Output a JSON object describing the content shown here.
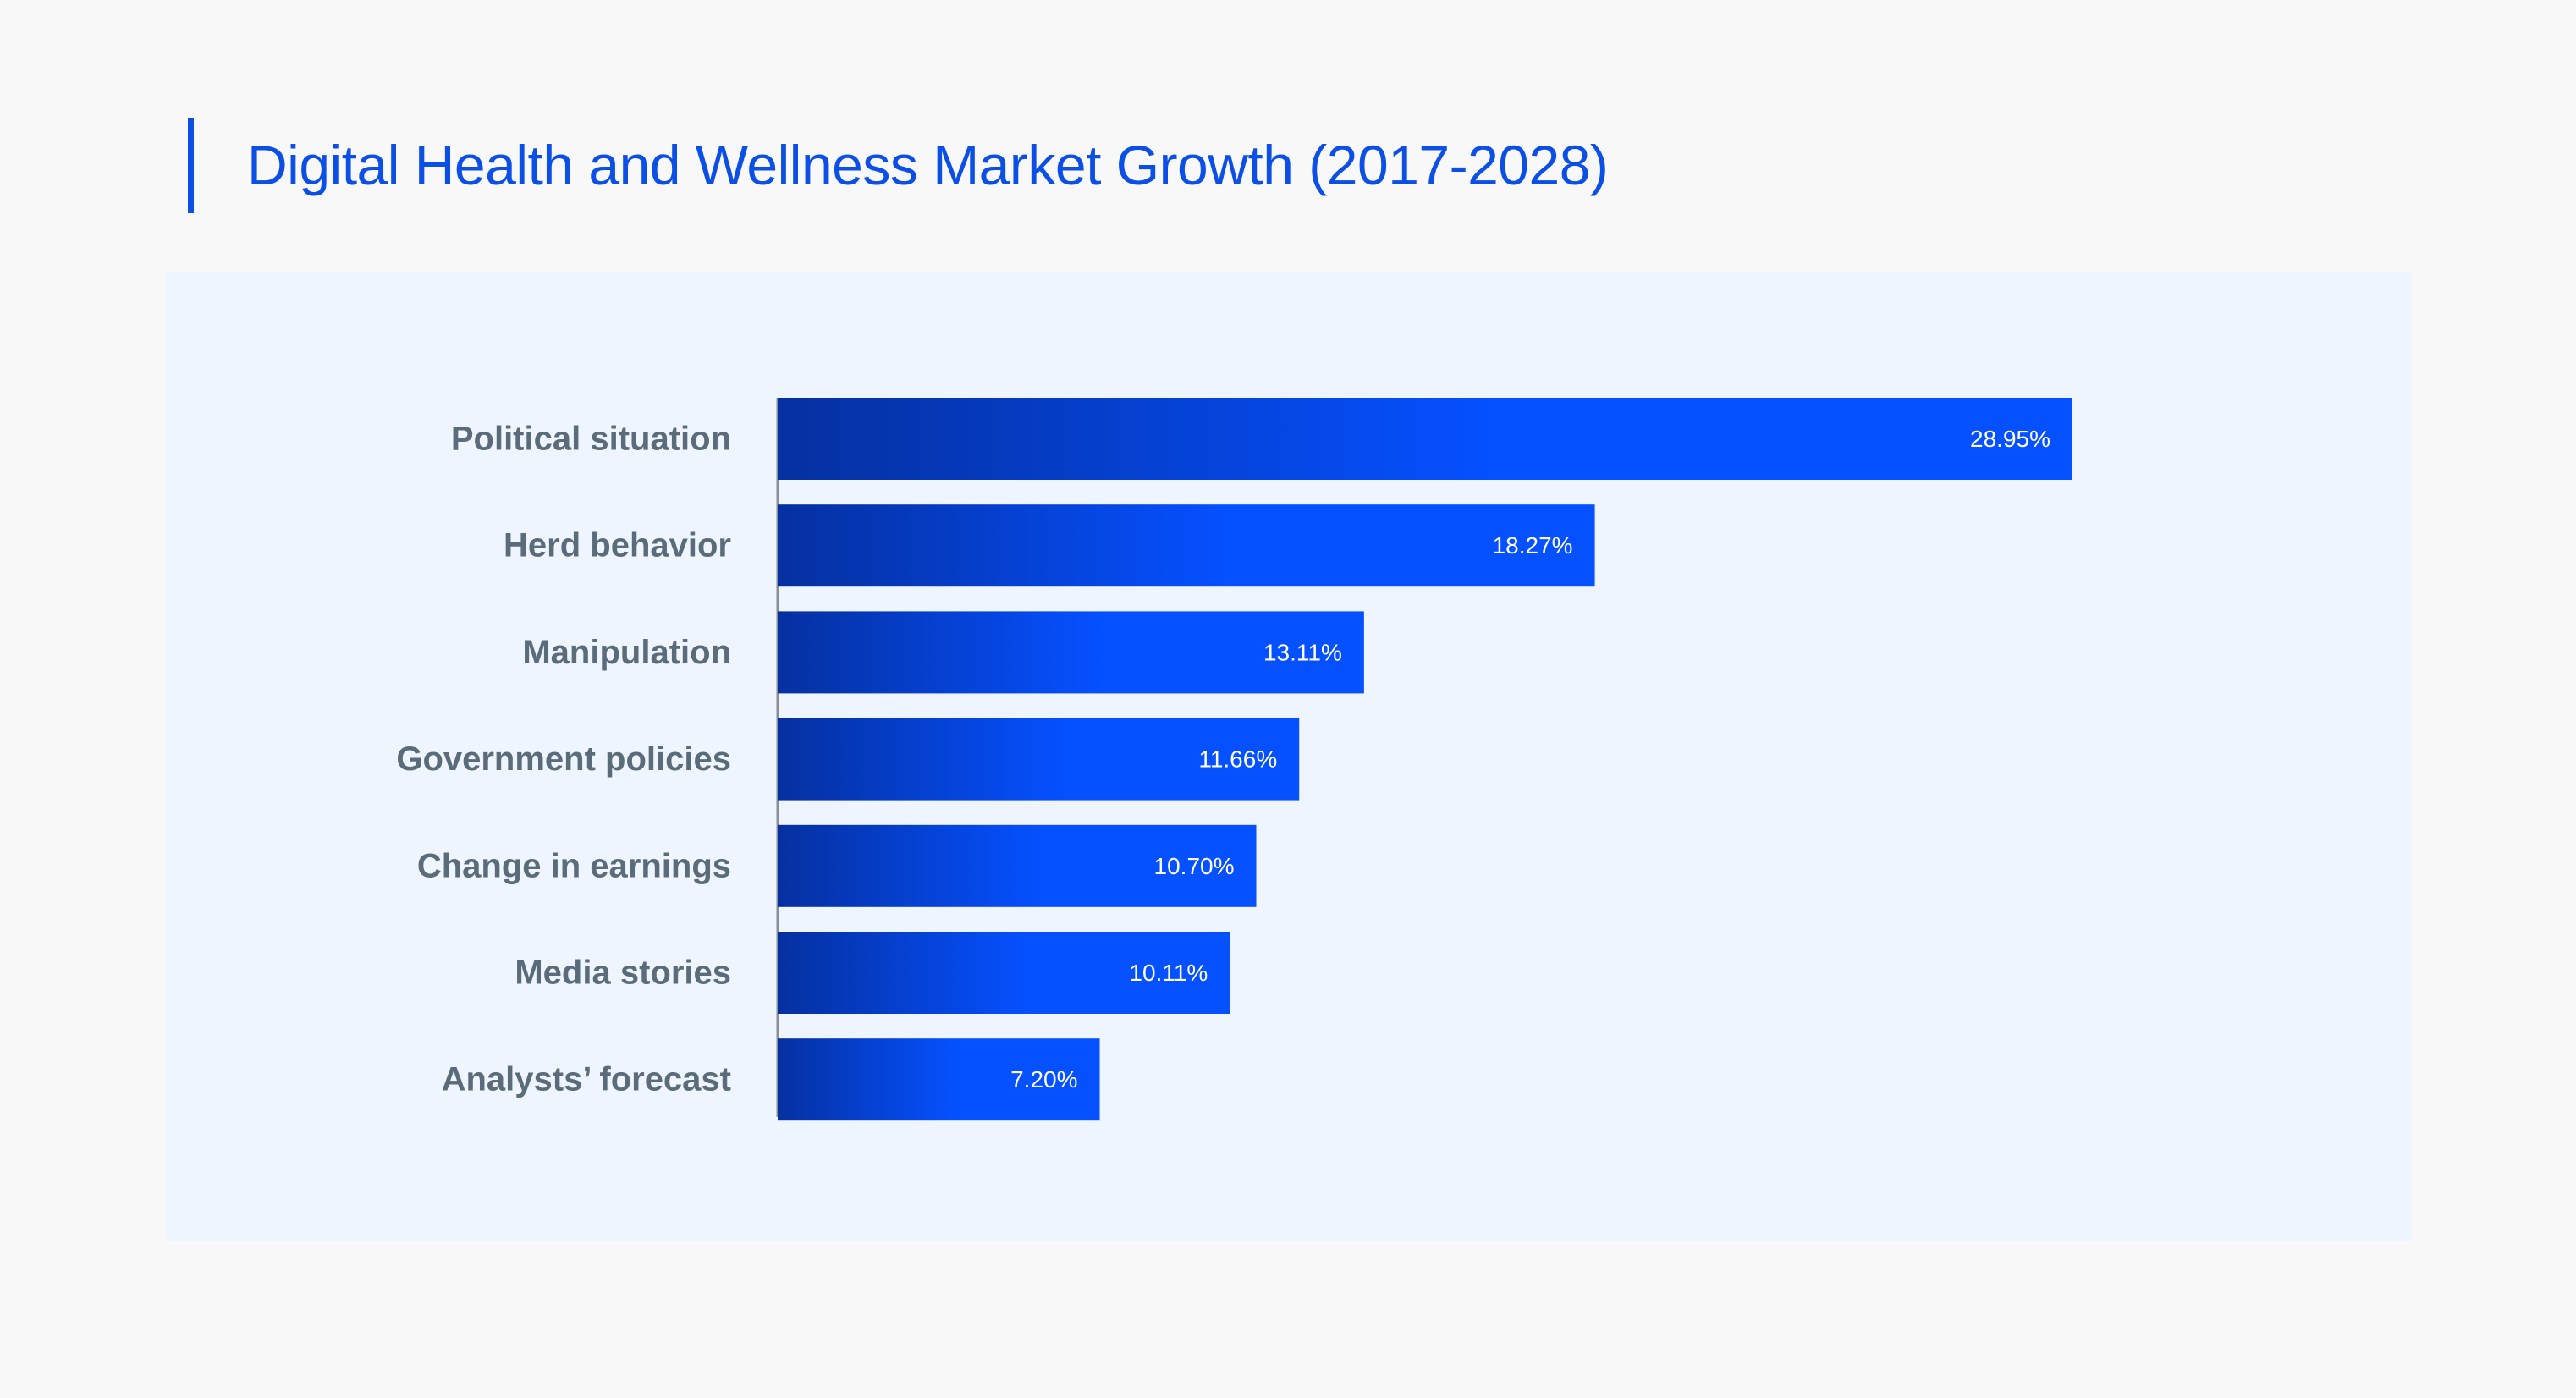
{
  "title": "Digital Health and Wellness Market Growth (2017-2028)",
  "colors": {
    "accent": "#0b4fe6",
    "bar_start": "#0530a0",
    "bar_end": "#0550ff",
    "label": "#5a6b7a",
    "panel": "#eff5fe",
    "background": "#f8f8f8"
  },
  "chart_data": {
    "type": "bar",
    "orientation": "horizontal",
    "title": "Digital Health and Wellness Market Growth (2017-2028)",
    "categories": [
      "Political situation",
      "Herd behavior",
      "Manipulation",
      "Government policies",
      "Change in earnings",
      "Media stories",
      "Analysts’ forecast"
    ],
    "values": [
      28.95,
      18.27,
      13.11,
      11.66,
      10.7,
      10.11,
      7.2
    ],
    "value_labels": [
      "28.95%",
      "18.27%",
      "13.11%",
      "11.66%",
      "10.70%",
      "10.11%",
      "7.20%"
    ],
    "unit": "%",
    "xlabel": "",
    "ylabel": "",
    "xlim": [
      0,
      28.95
    ],
    "grid": false,
    "legend": "none"
  }
}
